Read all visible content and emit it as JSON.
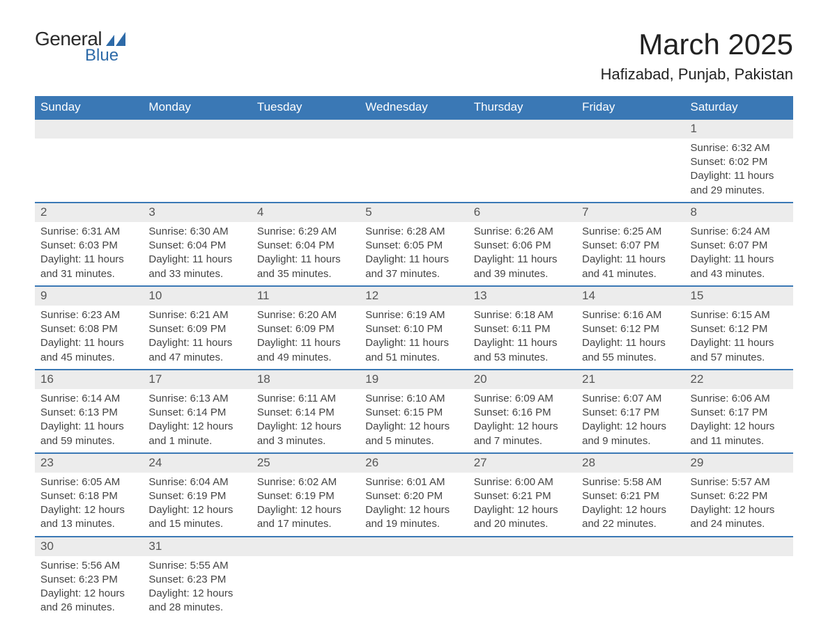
{
  "logo": {
    "text1": "General",
    "text2": "Blue",
    "mark_color": "#2d6aa8"
  },
  "title": "March 2025",
  "subtitle": "Hafizabad, Punjab, Pakistan",
  "colors": {
    "header_bg": "#3a78b5",
    "header_text": "#ffffff",
    "daynum_bg": "#ececec",
    "row_border": "#3a78b5",
    "body_text": "#444444"
  },
  "weekdays": [
    "Sunday",
    "Monday",
    "Tuesday",
    "Wednesday",
    "Thursday",
    "Friday",
    "Saturday"
  ],
  "weeks": [
    [
      null,
      null,
      null,
      null,
      null,
      null,
      {
        "d": "1",
        "sunrise": "Sunrise: 6:32 AM",
        "sunset": "Sunset: 6:02 PM",
        "day1": "Daylight: 11 hours",
        "day2": "and 29 minutes."
      }
    ],
    [
      {
        "d": "2",
        "sunrise": "Sunrise: 6:31 AM",
        "sunset": "Sunset: 6:03 PM",
        "day1": "Daylight: 11 hours",
        "day2": "and 31 minutes."
      },
      {
        "d": "3",
        "sunrise": "Sunrise: 6:30 AM",
        "sunset": "Sunset: 6:04 PM",
        "day1": "Daylight: 11 hours",
        "day2": "and 33 minutes."
      },
      {
        "d": "4",
        "sunrise": "Sunrise: 6:29 AM",
        "sunset": "Sunset: 6:04 PM",
        "day1": "Daylight: 11 hours",
        "day2": "and 35 minutes."
      },
      {
        "d": "5",
        "sunrise": "Sunrise: 6:28 AM",
        "sunset": "Sunset: 6:05 PM",
        "day1": "Daylight: 11 hours",
        "day2": "and 37 minutes."
      },
      {
        "d": "6",
        "sunrise": "Sunrise: 6:26 AM",
        "sunset": "Sunset: 6:06 PM",
        "day1": "Daylight: 11 hours",
        "day2": "and 39 minutes."
      },
      {
        "d": "7",
        "sunrise": "Sunrise: 6:25 AM",
        "sunset": "Sunset: 6:07 PM",
        "day1": "Daylight: 11 hours",
        "day2": "and 41 minutes."
      },
      {
        "d": "8",
        "sunrise": "Sunrise: 6:24 AM",
        "sunset": "Sunset: 6:07 PM",
        "day1": "Daylight: 11 hours",
        "day2": "and 43 minutes."
      }
    ],
    [
      {
        "d": "9",
        "sunrise": "Sunrise: 6:23 AM",
        "sunset": "Sunset: 6:08 PM",
        "day1": "Daylight: 11 hours",
        "day2": "and 45 minutes."
      },
      {
        "d": "10",
        "sunrise": "Sunrise: 6:21 AM",
        "sunset": "Sunset: 6:09 PM",
        "day1": "Daylight: 11 hours",
        "day2": "and 47 minutes."
      },
      {
        "d": "11",
        "sunrise": "Sunrise: 6:20 AM",
        "sunset": "Sunset: 6:09 PM",
        "day1": "Daylight: 11 hours",
        "day2": "and 49 minutes."
      },
      {
        "d": "12",
        "sunrise": "Sunrise: 6:19 AM",
        "sunset": "Sunset: 6:10 PM",
        "day1": "Daylight: 11 hours",
        "day2": "and 51 minutes."
      },
      {
        "d": "13",
        "sunrise": "Sunrise: 6:18 AM",
        "sunset": "Sunset: 6:11 PM",
        "day1": "Daylight: 11 hours",
        "day2": "and 53 minutes."
      },
      {
        "d": "14",
        "sunrise": "Sunrise: 6:16 AM",
        "sunset": "Sunset: 6:12 PM",
        "day1": "Daylight: 11 hours",
        "day2": "and 55 minutes."
      },
      {
        "d": "15",
        "sunrise": "Sunrise: 6:15 AM",
        "sunset": "Sunset: 6:12 PM",
        "day1": "Daylight: 11 hours",
        "day2": "and 57 minutes."
      }
    ],
    [
      {
        "d": "16",
        "sunrise": "Sunrise: 6:14 AM",
        "sunset": "Sunset: 6:13 PM",
        "day1": "Daylight: 11 hours",
        "day2": "and 59 minutes."
      },
      {
        "d": "17",
        "sunrise": "Sunrise: 6:13 AM",
        "sunset": "Sunset: 6:14 PM",
        "day1": "Daylight: 12 hours",
        "day2": "and 1 minute."
      },
      {
        "d": "18",
        "sunrise": "Sunrise: 6:11 AM",
        "sunset": "Sunset: 6:14 PM",
        "day1": "Daylight: 12 hours",
        "day2": "and 3 minutes."
      },
      {
        "d": "19",
        "sunrise": "Sunrise: 6:10 AM",
        "sunset": "Sunset: 6:15 PM",
        "day1": "Daylight: 12 hours",
        "day2": "and 5 minutes."
      },
      {
        "d": "20",
        "sunrise": "Sunrise: 6:09 AM",
        "sunset": "Sunset: 6:16 PM",
        "day1": "Daylight: 12 hours",
        "day2": "and 7 minutes."
      },
      {
        "d": "21",
        "sunrise": "Sunrise: 6:07 AM",
        "sunset": "Sunset: 6:17 PM",
        "day1": "Daylight: 12 hours",
        "day2": "and 9 minutes."
      },
      {
        "d": "22",
        "sunrise": "Sunrise: 6:06 AM",
        "sunset": "Sunset: 6:17 PM",
        "day1": "Daylight: 12 hours",
        "day2": "and 11 minutes."
      }
    ],
    [
      {
        "d": "23",
        "sunrise": "Sunrise: 6:05 AM",
        "sunset": "Sunset: 6:18 PM",
        "day1": "Daylight: 12 hours",
        "day2": "and 13 minutes."
      },
      {
        "d": "24",
        "sunrise": "Sunrise: 6:04 AM",
        "sunset": "Sunset: 6:19 PM",
        "day1": "Daylight: 12 hours",
        "day2": "and 15 minutes."
      },
      {
        "d": "25",
        "sunrise": "Sunrise: 6:02 AM",
        "sunset": "Sunset: 6:19 PM",
        "day1": "Daylight: 12 hours",
        "day2": "and 17 minutes."
      },
      {
        "d": "26",
        "sunrise": "Sunrise: 6:01 AM",
        "sunset": "Sunset: 6:20 PM",
        "day1": "Daylight: 12 hours",
        "day2": "and 19 minutes."
      },
      {
        "d": "27",
        "sunrise": "Sunrise: 6:00 AM",
        "sunset": "Sunset: 6:21 PM",
        "day1": "Daylight: 12 hours",
        "day2": "and 20 minutes."
      },
      {
        "d": "28",
        "sunrise": "Sunrise: 5:58 AM",
        "sunset": "Sunset: 6:21 PM",
        "day1": "Daylight: 12 hours",
        "day2": "and 22 minutes."
      },
      {
        "d": "29",
        "sunrise": "Sunrise: 5:57 AM",
        "sunset": "Sunset: 6:22 PM",
        "day1": "Daylight: 12 hours",
        "day2": "and 24 minutes."
      }
    ],
    [
      {
        "d": "30",
        "sunrise": "Sunrise: 5:56 AM",
        "sunset": "Sunset: 6:23 PM",
        "day1": "Daylight: 12 hours",
        "day2": "and 26 minutes."
      },
      {
        "d": "31",
        "sunrise": "Sunrise: 5:55 AM",
        "sunset": "Sunset: 6:23 PM",
        "day1": "Daylight: 12 hours",
        "day2": "and 28 minutes."
      },
      null,
      null,
      null,
      null,
      null
    ]
  ]
}
